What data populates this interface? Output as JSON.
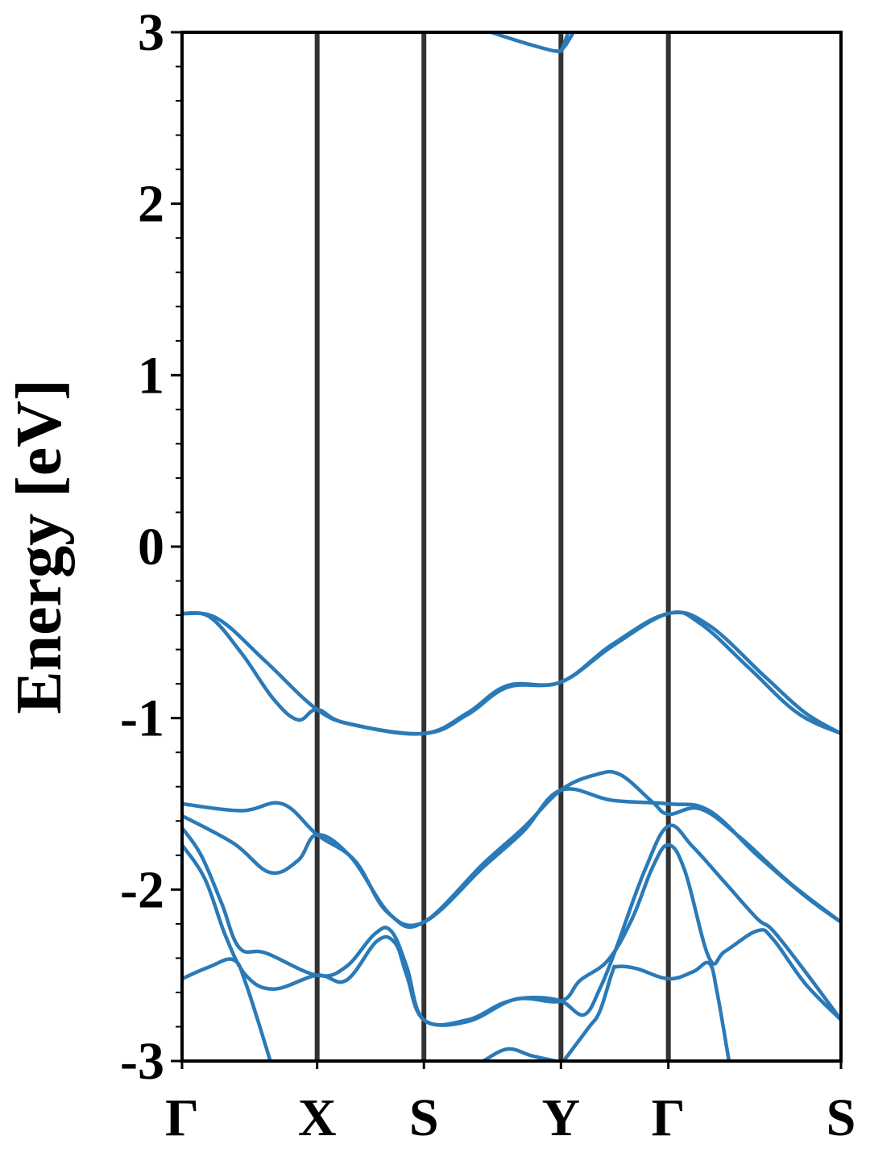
{
  "chart_data": {
    "type": "line",
    "title": "",
    "xlabel": "",
    "ylabel": "Energy [eV]",
    "ylim": [
      -3,
      3
    ],
    "xlim": [
      0,
      1
    ],
    "yticks": [
      3,
      2,
      1,
      0,
      -1,
      -2,
      -3
    ],
    "ytick_labels": [
      "3",
      "2",
      "1",
      "0",
      "-1",
      "-2",
      "-3"
    ],
    "y_minor_tick_step": 0.2,
    "grid": false,
    "high_symmetry_points": [
      {
        "label": "Γ",
        "k": 0
      },
      {
        "label": "X",
        "k": 0.205
      },
      {
        "label": "S",
        "k": 0.367
      },
      {
        "label": "Y",
        "k": 0.575
      },
      {
        "label": "Γ",
        "k": 0.738
      },
      {
        "label": "S",
        "k": 1
      }
    ],
    "band_color": "#2a7ab8",
    "kpoint_line_color": "#333333",
    "bands": [
      [
        [
          0,
          -0.39
        ],
        [
          0.054,
          -0.42
        ],
        [
          0.127,
          -0.67
        ],
        [
          0.205,
          -0.95
        ],
        [
          0.262,
          -1.04
        ],
        [
          0.367,
          -1.09
        ],
        [
          0.433,
          -0.97
        ],
        [
          0.494,
          -0.81
        ],
        [
          0.575,
          -0.79
        ],
        [
          0.653,
          -0.57
        ],
        [
          0.738,
          -0.39
        ],
        [
          0.8,
          -0.46
        ],
        [
          0.885,
          -0.76
        ],
        [
          0.946,
          -0.97
        ],
        [
          1,
          -1.09
        ]
      ],
      [
        [
          0,
          -0.39
        ],
        [
          0.042,
          -0.41
        ],
        [
          0.09,
          -0.62
        ],
        [
          0.139,
          -0.89
        ],
        [
          0.176,
          -1.01
        ],
        [
          0.205,
          -0.95
        ],
        [
          0.249,
          -1.03
        ],
        [
          0.367,
          -1.09
        ],
        [
          0.433,
          -0.98
        ],
        [
          0.494,
          -0.82
        ],
        [
          0.575,
          -0.79
        ],
        [
          0.653,
          -0.58
        ],
        [
          0.738,
          -0.39
        ],
        [
          0.787,
          -0.45
        ],
        [
          0.861,
          -0.71
        ],
        [
          0.934,
          -0.97
        ],
        [
          1,
          -1.09
        ]
      ],
      [
        [
          0,
          -1.5
        ],
        [
          0.09,
          -1.54
        ],
        [
          0.152,
          -1.5
        ],
        [
          0.205,
          -1.68
        ],
        [
          0.262,
          -1.83
        ],
        [
          0.311,
          -2.13
        ],
        [
          0.367,
          -2.19
        ],
        [
          0.457,
          -1.87
        ],
        [
          0.518,
          -1.66
        ],
        [
          0.575,
          -1.42
        ],
        [
          0.653,
          -1.48
        ],
        [
          0.738,
          -1.5
        ],
        [
          0.8,
          -1.54
        ],
        [
          0.873,
          -1.8
        ],
        [
          0.946,
          -2.04
        ],
        [
          1,
          -2.19
        ]
      ],
      [
        [
          0,
          -1.57
        ],
        [
          0.078,
          -1.73
        ],
        [
          0.133,
          -1.9
        ],
        [
          0.176,
          -1.83
        ],
        [
          0.205,
          -1.68
        ],
        [
          0.256,
          -1.81
        ],
        [
          0.317,
          -2.15
        ],
        [
          0.367,
          -2.19
        ],
        [
          0.457,
          -1.85
        ],
        [
          0.518,
          -1.64
        ],
        [
          0.575,
          -1.42
        ],
        [
          0.628,
          -1.33
        ],
        [
          0.665,
          -1.33
        ],
        [
          0.714,
          -1.49
        ],
        [
          0.738,
          -1.56
        ],
        [
          0.787,
          -1.53
        ],
        [
          0.848,
          -1.7
        ],
        [
          0.922,
          -1.96
        ],
        [
          1,
          -2.19
        ]
      ],
      [
        [
          0,
          -1.64
        ],
        [
          0.029,
          -1.8
        ],
        [
          0.06,
          -2.08
        ],
        [
          0.087,
          -2.34
        ],
        [
          0.127,
          -2.37
        ],
        [
          0.205,
          -2.5
        ],
        [
          0.249,
          -2.45
        ],
        [
          0.292,
          -2.26
        ],
        [
          0.317,
          -2.24
        ],
        [
          0.341,
          -2.45
        ],
        [
          0.367,
          -2.76
        ],
        [
          0.433,
          -2.76
        ],
        [
          0.488,
          -2.66
        ],
        [
          0.531,
          -2.63
        ],
        [
          0.575,
          -2.65
        ],
        [
          0.61,
          -2.73
        ],
        [
          0.635,
          -2.57
        ],
        [
          0.659,
          -2.34
        ],
        [
          0.702,
          -1.89
        ],
        [
          0.738,
          -1.63
        ],
        [
          0.775,
          -1.75
        ],
        [
          0.824,
          -1.96
        ],
        [
          0.873,
          -2.17
        ],
        [
          0.897,
          -2.24
        ],
        [
          0.946,
          -2.48
        ],
        [
          1,
          -2.76
        ]
      ],
      [
        [
          0,
          -1.74
        ],
        [
          0.035,
          -1.94
        ],
        [
          0.066,
          -2.27
        ],
        [
          0.097,
          -2.5
        ],
        [
          0.139,
          -2.58
        ],
        [
          0.205,
          -2.5
        ],
        [
          0.249,
          -2.53
        ],
        [
          0.296,
          -2.3
        ],
        [
          0.323,
          -2.31
        ],
        [
          0.341,
          -2.5
        ],
        [
          0.367,
          -2.76
        ],
        [
          0.433,
          -2.77
        ],
        [
          0.506,
          -2.64
        ],
        [
          0.575,
          -2.65
        ],
        [
          0.604,
          -2.53
        ],
        [
          0.647,
          -2.41
        ],
        [
          0.683,
          -2.17
        ],
        [
          0.714,
          -1.87
        ],
        [
          0.738,
          -1.74
        ],
        [
          0.763,
          -1.89
        ],
        [
          0.8,
          -2.4
        ],
        [
          0.824,
          -2.36
        ],
        [
          0.873,
          -2.24
        ],
        [
          0.897,
          -2.29
        ],
        [
          0.946,
          -2.55
        ],
        [
          1,
          -2.76
        ]
      ],
      [
        [
          0,
          -2.52
        ],
        [
          0.042,
          -2.45
        ],
        [
          0.078,
          -2.41
        ],
        [
          0.097,
          -2.55
        ],
        [
          0.134,
          -3.0
        ]
      ],
      [
        [
          0.579,
          -3.0
        ],
        [
          0.616,
          -2.81
        ],
        [
          0.634,
          -2.71
        ],
        [
          0.653,
          -2.48
        ],
        [
          0.66,
          -2.45
        ],
        [
          0.689,
          -2.46
        ],
        [
          0.738,
          -2.52
        ],
        [
          0.775,
          -2.48
        ],
        [
          0.8,
          -2.43
        ],
        [
          0.812,
          -2.6
        ],
        [
          0.83,
          -3.0
        ]
      ],
      [
        [
          0.457,
          -3.0
        ],
        [
          0.494,
          -2.93
        ],
        [
          0.531,
          -2.97
        ],
        [
          0.567,
          -3.0
        ]
      ],
      [
        [
          0.469,
          3.0
        ],
        [
          0.518,
          2.94
        ],
        [
          0.567,
          2.89
        ],
        [
          0.579,
          2.91
        ],
        [
          0.594,
          3.0
        ]
      ],
      [
        [
          0.567,
          2.89
        ],
        [
          0.576,
          2.9
        ],
        [
          0.586,
          3.0
        ]
      ]
    ]
  }
}
